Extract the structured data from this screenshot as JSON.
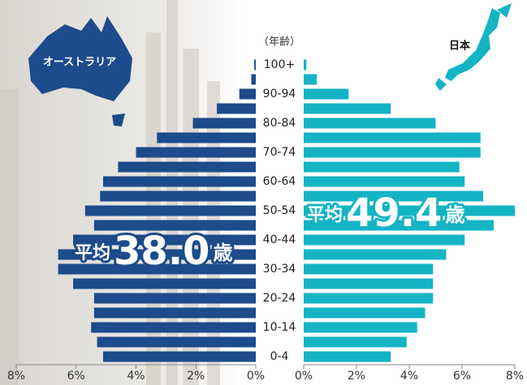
{
  "chart_data": {
    "type": "pyramid",
    "y_label": "（年齢）",
    "categories": [
      "0-4",
      null,
      "10-14",
      null,
      "20-24",
      null,
      "30-34",
      null,
      "40-44",
      null,
      "50-54",
      null,
      "60-64",
      null,
      "70-74",
      null,
      "80-84",
      null,
      "90-94",
      null,
      "100+"
    ],
    "series": [
      {
        "name": "オーストラリア",
        "color": "#1d4b8b",
        "side": "left",
        "values": [
          5.1,
          5.3,
          5.5,
          5.4,
          5.4,
          6.1,
          6.6,
          6.6,
          6.1,
          5.4,
          5.7,
          5.2,
          5.1,
          4.6,
          4.0,
          3.3,
          2.1,
          1.3,
          0.55,
          0.15,
          0.05
        ],
        "xlim": [
          0,
          8
        ],
        "xticks": [
          {
            "value": 8,
            "label": "8%"
          },
          {
            "value": 6,
            "label": "6%"
          },
          {
            "value": 4,
            "label": "4%"
          },
          {
            "value": 2,
            "label": "2%"
          },
          {
            "value": 0,
            "label": "0%"
          }
        ],
        "mean": {
          "label": "平均",
          "value_label": "38.0",
          "unit": "歳"
        }
      },
      {
        "name": "日本",
        "color": "#14b4c4",
        "side": "right",
        "values": [
          3.3,
          3.9,
          4.3,
          4.6,
          4.9,
          4.9,
          4.9,
          5.4,
          6.1,
          7.2,
          8.0,
          6.8,
          6.1,
          5.9,
          6.7,
          6.7,
          5.0,
          3.3,
          1.7,
          0.5,
          0.1
        ],
        "xlim": [
          0,
          8
        ],
        "xticks": [
          {
            "value": 0,
            "label": "0%"
          },
          {
            "value": 2,
            "label": "2%"
          },
          {
            "value": 4,
            "label": "4%"
          },
          {
            "value": 6,
            "label": "6%"
          },
          {
            "value": 8,
            "label": "8%"
          }
        ],
        "mean": {
          "label": "平均",
          "value_label": "49.4",
          "unit": "歳"
        }
      }
    ]
  }
}
